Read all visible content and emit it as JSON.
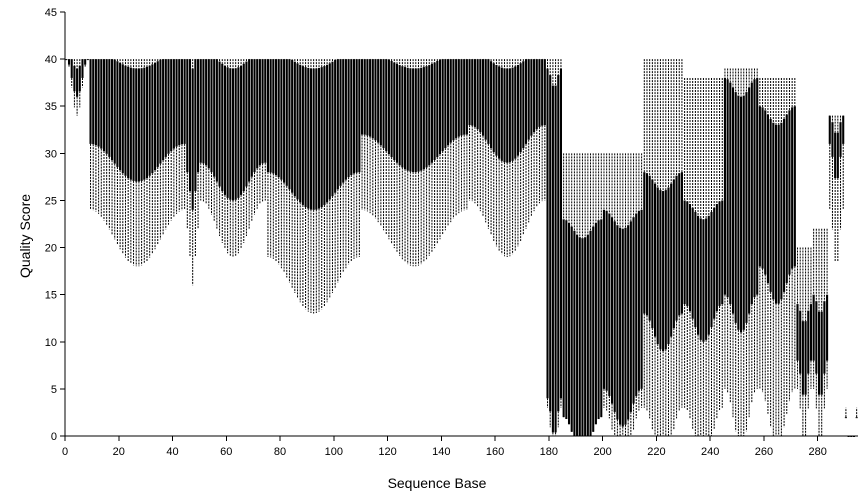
{
  "chart_data": {
    "type": "boxplot",
    "title": "",
    "xlabel": "Sequence Base",
    "ylabel": "Quality Score",
    "xlim": [
      0,
      295
    ],
    "ylim": [
      0,
      45
    ],
    "xticks": [
      0,
      20,
      40,
      60,
      80,
      100,
      120,
      140,
      160,
      180,
      200,
      220,
      240,
      260,
      280
    ],
    "yticks": [
      0,
      5,
      10,
      15,
      20,
      25,
      30,
      35,
      40,
      45
    ],
    "grid": false,
    "colors": {
      "box_fill": "#000000",
      "whisker": "#000000",
      "axis": "#000000"
    },
    "segments": [
      {
        "from": 1,
        "to": 9,
        "min": 37,
        "q1": 38,
        "median": 40,
        "q3": 40,
        "max": 40
      },
      {
        "from": 10,
        "to": 45,
        "min": 21,
        "q1": 29,
        "median": 38,
        "q3": 40,
        "max": 40
      },
      {
        "from": 46,
        "to": 50,
        "min": 19,
        "q1": 26,
        "median": 34,
        "q3": 40,
        "max": 40
      },
      {
        "from": 51,
        "to": 75,
        "min": 22,
        "q1": 27,
        "median": 35,
        "q3": 40,
        "max": 40
      },
      {
        "from": 76,
        "to": 110,
        "min": 16,
        "q1": 26,
        "median": 34,
        "q3": 40,
        "max": 40
      },
      {
        "from": 111,
        "to": 150,
        "min": 21,
        "q1": 30,
        "median": 36,
        "q3": 40,
        "max": 40
      },
      {
        "from": 151,
        "to": 179,
        "min": 22,
        "q1": 31,
        "median": 37,
        "q3": 40,
        "max": 40
      },
      {
        "from": 180,
        "to": 185,
        "min": 0,
        "q1": 2,
        "median": 20,
        "q3": 38,
        "max": 40
      },
      {
        "from": 186,
        "to": 200,
        "min": 0,
        "q1": 0,
        "median": 10,
        "q3": 22,
        "max": 30
      },
      {
        "from": 201,
        "to": 215,
        "min": 0,
        "q1": 3,
        "median": 12,
        "q3": 23,
        "max": 30
      },
      {
        "from": 216,
        "to": 230,
        "min": 0,
        "q1": 11,
        "median": 15,
        "q3": 27,
        "max": 40
      },
      {
        "from": 231,
        "to": 245,
        "min": 0,
        "q1": 12,
        "median": 16,
        "q3": 24,
        "max": 38
      },
      {
        "from": 246,
        "to": 258,
        "min": 2,
        "q1": 13,
        "median": 20,
        "q3": 37,
        "max": 39
      },
      {
        "from": 259,
        "to": 272,
        "min": 2,
        "q1": 16,
        "median": 23,
        "q3": 34,
        "max": 38
      },
      {
        "from": 273,
        "to": 278,
        "min": 2,
        "q1": 6,
        "median": 10,
        "q3": 13,
        "max": 20
      },
      {
        "from": 279,
        "to": 284,
        "min": 2,
        "q1": 6,
        "median": 10,
        "q3": 14,
        "max": 22
      },
      {
        "from": 285,
        "to": 290,
        "min": 21,
        "q1": 29,
        "median": 31,
        "q3": 33,
        "max": 34
      },
      {
        "from": 291,
        "to": 295,
        "min": 0,
        "q1": 0,
        "median": 0,
        "q3": 0,
        "max": 0
      }
    ]
  }
}
